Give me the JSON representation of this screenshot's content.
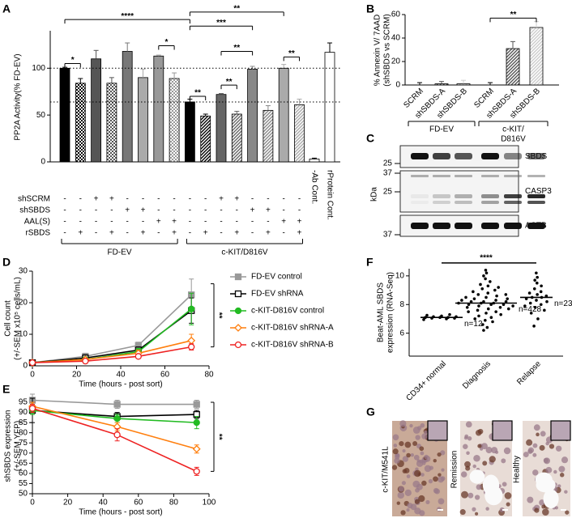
{
  "panel_labels": [
    "A",
    "B",
    "C",
    "D",
    "E",
    "F",
    "G"
  ],
  "chart_data": [
    {
      "type": "bar",
      "y_label": "PP2A Activity(% FD-EV)",
      "values": [
        100,
        84,
        110,
        84,
        118,
        90,
        113,
        89,
        64,
        49,
        72,
        51,
        99,
        55,
        100,
        61,
        3,
        117
      ],
      "errors": [
        1,
        5,
        9,
        6,
        9,
        9,
        1,
        6,
        3,
        2,
        1,
        3,
        3,
        5,
        4,
        6,
        1,
        10
      ],
      "colors": [
        "#000000",
        "#000000",
        "#555555",
        "#555555",
        "#777777",
        "#aaaaaa",
        "#999999",
        "#999999",
        "#000000",
        "#000000",
        "#666666",
        "#666666",
        "#888888",
        "#888888",
        "#aaaaaa",
        "#aaaaaa",
        "#000000",
        "#000000"
      ],
      "patterns": [
        "solid",
        "checker",
        "solid",
        "checker",
        "solid",
        "solid",
        "solid",
        "checker",
        "solid",
        "hatch",
        "solid",
        "hatch",
        "solid",
        "hatch",
        "solid",
        "hatch",
        "outline",
        "outline"
      ],
      "ylim": [
        0,
        140
      ],
      "yticks": [
        0,
        50,
        100
      ],
      "ref_lines": [
        100,
        64
      ],
      "annotations": [
        "*",
        "*",
        "****",
        "**",
        "**",
        "**",
        "**",
        "***",
        "**"
      ],
      "treatment_rows": [
        {
          "label": "shSCRM",
          "signs": [
            "-",
            "-",
            "+",
            "+",
            "-",
            "-",
            "-",
            "-",
            "-",
            "-",
            "+",
            "+",
            "-",
            "-",
            "-",
            "-"
          ]
        },
        {
          "label": "shSBDS",
          "signs": [
            "-",
            "-",
            "-",
            "-",
            "+",
            "+",
            "-",
            "-",
            "-",
            "-",
            "-",
            "-",
            "+",
            "+",
            "-",
            "-"
          ]
        },
        {
          "label": "AAL(S)",
          "signs": [
            "-",
            "-",
            "-",
            "-",
            "-",
            "-",
            "+",
            "+",
            "-",
            "-",
            "-",
            "-",
            "-",
            "-",
            "+",
            "+"
          ]
        },
        {
          "label": "rSBDS",
          "signs": [
            "-",
            "+",
            "-",
            "+",
            "-",
            "+",
            "-",
            "+",
            "-",
            "+",
            "-",
            "+",
            "-",
            "+",
            "-",
            "+"
          ]
        }
      ],
      "groups": [
        "FD-EV",
        "c-KIT/D816V"
      ],
      "control_labels": [
        "-Ab Cont.",
        "rProtein Cont."
      ]
    },
    {
      "type": "bar",
      "y_label": [
        "% Annexin V/ 7AAD",
        "(shSBDS vs SCRM)"
      ],
      "categories": [
        "SCRM",
        "shSBDS-A",
        "shSBDS-B",
        "SCRM",
        "shSBDS-A",
        "shSBDS-B"
      ],
      "values": [
        0,
        1,
        1,
        0,
        31,
        49
      ],
      "errors": [
        2,
        2,
        3,
        2,
        6,
        5
      ],
      "colors": [
        "#000000",
        "#555555",
        "#cccccc",
        "#000000",
        "#555555",
        "#cccccc"
      ],
      "patterns": [
        "solid",
        "hatch",
        "hatch",
        "solid",
        "hatch",
        "hatch"
      ],
      "ylim": [
        0,
        60
      ],
      "yticks": [
        0,
        20,
        40,
        60
      ],
      "annotations": [
        "**"
      ]
    },
    {
      "type": "line",
      "x_label": "Time (hours - post sort)",
      "y_label": [
        "Cell count",
        "(+/-SEM x10⁵ cells/mL)"
      ],
      "x": [
        0,
        24,
        48,
        72
      ],
      "series": [
        {
          "name": "FD-EV control",
          "color": "#999999",
          "marker": "square-filled",
          "values": [
            1,
            3,
            6.5,
            22.5
          ],
          "errors": [
            0.3,
            1,
            1,
            5
          ]
        },
        {
          "name": "FD-EV shRNA",
          "color": "#000000",
          "marker": "square-open",
          "values": [
            1,
            2.5,
            5,
            17.5
          ],
          "errors": [
            0.3,
            1,
            1,
            4
          ]
        },
        {
          "name": "c-KIT-D816V control",
          "color": "#22bb22",
          "marker": "circle-filled",
          "values": [
            1,
            2,
            4.5,
            18
          ],
          "errors": [
            0.2,
            0.5,
            1,
            5
          ]
        },
        {
          "name": "c-KIT-D816V shRNA-A",
          "color": "#ff7f0e",
          "marker": "diamond-open",
          "values": [
            1,
            2,
            4,
            8
          ],
          "errors": [
            0.2,
            0.5,
            1,
            2
          ]
        },
        {
          "name": "c-KIT-D816V shRNA-B",
          "color": "#ee2222",
          "marker": "circle-open",
          "values": [
            1,
            1.5,
            3,
            6
          ],
          "errors": [
            0.2,
            0.5,
            0.6,
            1
          ]
        }
      ],
      "xlim": [
        0,
        80
      ],
      "xticks": [
        0,
        20,
        40,
        60,
        80
      ],
      "ylim": [
        0,
        30
      ],
      "yticks": [
        0,
        10,
        20,
        30
      ],
      "annotations": [
        "**"
      ]
    },
    {
      "type": "line",
      "x_label": "Time (hours - post sort)",
      "y_label": [
        "shSBDS expression",
        "(+/-SEM YFP)"
      ],
      "x": [
        0,
        48,
        93
      ],
      "series": [
        {
          "color": "#999999",
          "marker": "square-filled",
          "values": [
            96,
            94,
            94
          ],
          "errors": [
            3,
            2,
            2
          ]
        },
        {
          "color": "#000000",
          "marker": "square-open",
          "values": [
            91,
            88,
            89
          ],
          "errors": [
            6,
            2,
            2
          ]
        },
        {
          "color": "#22bb22",
          "marker": "circle-filled",
          "values": [
            91,
            87,
            85
          ],
          "errors": [
            2,
            2,
            3
          ]
        },
        {
          "color": "#ff7f0e",
          "marker": "diamond-open",
          "values": [
            93,
            83,
            72
          ],
          "errors": [
            2,
            2,
            2
          ]
        },
        {
          "color": "#ee2222",
          "marker": "circle-open",
          "values": [
            92,
            79,
            61
          ],
          "errors": [
            2,
            3,
            2
          ]
        }
      ],
      "xlim": [
        0,
        100
      ],
      "xticks": [
        0,
        20,
        40,
        60,
        80,
        100
      ],
      "ylim": [
        50,
        97
      ],
      "yticks": [
        50,
        55,
        60,
        65,
        70,
        75,
        80,
        85,
        90,
        95
      ],
      "annotations": [
        "**"
      ]
    },
    {
      "type": "dot",
      "y_label": [
        "Beat-AML SBDS",
        "expression (RNA-Seq)"
      ],
      "categories": [
        "CD34+ normal",
        "Diagnosis",
        "Relapse"
      ],
      "points": [
        [
          6.95,
          7.0,
          7.05,
          7.05,
          7.1,
          7.1,
          7.1,
          7.15,
          7.15,
          7.2,
          7.25,
          7.3
        ],
        [
          6.2,
          6.4,
          6.6,
          6.8,
          6.9,
          7.0,
          7.1,
          7.2,
          7.3,
          7.4,
          7.5,
          7.5,
          7.6,
          7.7,
          7.7,
          7.8,
          7.8,
          7.9,
          7.9,
          8.0,
          8.0,
          8.0,
          8.1,
          8.1,
          8.1,
          8.2,
          8.2,
          8.2,
          8.3,
          8.3,
          8.4,
          8.4,
          8.5,
          8.5,
          8.6,
          8.7,
          8.7,
          8.8,
          8.9,
          9.0,
          9.1,
          9.2,
          9.3,
          9.4,
          9.6,
          9.8,
          10.0,
          10.2,
          10.4
        ],
        [
          6.5,
          7.0,
          7.4,
          7.6,
          7.8,
          7.9,
          8.0,
          8.1,
          8.2,
          8.3,
          8.4,
          8.5,
          8.5,
          8.6,
          8.7,
          8.8,
          8.9,
          9.1,
          9.3,
          9.5,
          9.7,
          9.9,
          10.2
        ]
      ],
      "medians": [
        7.1,
        8.1,
        8.5
      ],
      "n_labels": [
        "n=12",
        "n=428",
        "n=23"
      ],
      "ylim": [
        4.4,
        10.5
      ],
      "yticks": [
        6,
        8,
        10
      ],
      "annotations": [
        "****"
      ]
    }
  ],
  "blot": {
    "proteins": [
      "SBDS",
      "CASP3",
      "ACTB"
    ],
    "markers": [
      "25",
      "37",
      "25",
      "37"
    ],
    "unit": "kDa",
    "groups": [
      [
        "FD-EV"
      ],
      [
        "c-KIT/",
        "D816V"
      ]
    ]
  },
  "histology": {
    "labels": [
      "c-KIT/M541L",
      "Remission",
      "Healthy"
    ]
  }
}
